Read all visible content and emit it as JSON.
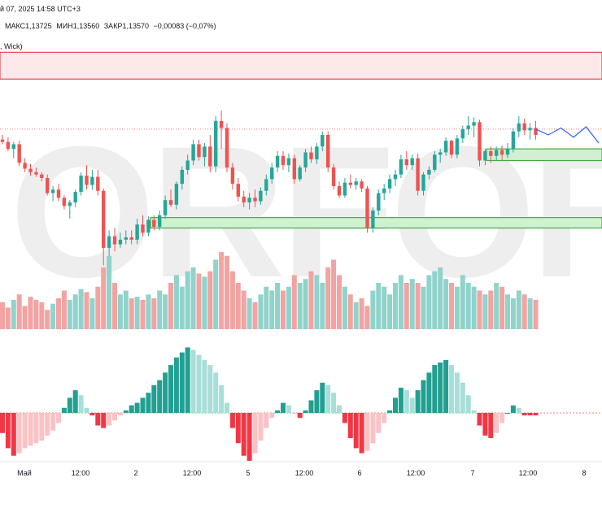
{
  "header": {
    "date_text": "й 07, 2025 14:58 UTC+3",
    "ohlc": [
      {
        "label": "МАКС",
        "value": "1,13725"
      },
      {
        "label": "МИН",
        "value": "1,13560"
      },
      {
        "label": "ЗАКР",
        "value": "1,13570"
      }
    ],
    "change": "−0,00083 (−0,07%)"
  },
  "indicator_label": ", Wick)",
  "watermark": "ORFOREX",
  "time_axis": {
    "ticks": [
      "Май",
      "12:00",
      "2",
      "12:00",
      "5",
      "12:00",
      "6",
      "12:00",
      "7",
      "12:00",
      "8"
    ]
  },
  "colors": {
    "up": "#26a69a",
    "down": "#ef5350",
    "volume_up": "#8fd3cb",
    "volume_down": "#f2a3a2",
    "osc_up_light": "#a8ded8",
    "osc_down_light": "#f9c2c5",
    "osc_up_strong": "#21a092",
    "osc_down_strong": "#f23645",
    "zone_red_fill": "#fde8ea",
    "zone_red_border": "#e8474f",
    "zone_green_fill": "#d3efd3",
    "zone_green_border": "#3fae3f",
    "projection_line": "#2962ff"
  },
  "chart_data": {
    "type": "candlestick",
    "title": "",
    "candles": [
      [
        1.1348,
        1.1352,
        1.1344,
        1.1346
      ],
      [
        1.1346,
        1.135,
        1.1338,
        1.134
      ],
      [
        1.134,
        1.1346,
        1.1332,
        1.1344
      ],
      [
        1.1344,
        1.1347,
        1.1325,
        1.1328
      ],
      [
        1.1328,
        1.1332,
        1.132,
        1.1323
      ],
      [
        1.1323,
        1.1327,
        1.1317,
        1.132
      ],
      [
        1.132,
        1.1324,
        1.1316,
        1.1318
      ],
      [
        1.1318,
        1.132,
        1.1312,
        1.1315
      ],
      [
        1.1315,
        1.1318,
        1.13,
        1.1302
      ],
      [
        1.1302,
        1.1308,
        1.1295,
        1.1305
      ],
      [
        1.1305,
        1.131,
        1.1295,
        1.1298
      ],
      [
        1.1298,
        1.13,
        1.1288,
        1.1291
      ],
      [
        1.1291,
        1.1296,
        1.128,
        1.1294
      ],
      [
        1.1294,
        1.1305,
        1.129,
        1.1303
      ],
      [
        1.1303,
        1.132,
        1.13,
        1.1317
      ],
      [
        1.1317,
        1.1326,
        1.1305,
        1.1309
      ],
      [
        1.1309,
        1.1322,
        1.1305,
        1.1316
      ],
      [
        1.1316,
        1.1322,
        1.13,
        1.1304
      ],
      [
        1.1304,
        1.1306,
        1.124,
        1.1255
      ],
      [
        1.1255,
        1.127,
        1.1248,
        1.1265
      ],
      [
        1.1265,
        1.1272,
        1.1252,
        1.1258
      ],
      [
        1.1258,
        1.1268,
        1.1255,
        1.1262
      ],
      [
        1.1262,
        1.127,
        1.1258,
        1.1264
      ],
      [
        1.1264,
        1.127,
        1.1258,
        1.1262
      ],
      [
        1.1262,
        1.128,
        1.1258,
        1.1275
      ],
      [
        1.1275,
        1.1283,
        1.1265,
        1.1268
      ],
      [
        1.1268,
        1.1282,
        1.1265,
        1.1279
      ],
      [
        1.1279,
        1.1283,
        1.127,
        1.1273
      ],
      [
        1.1273,
        1.1287,
        1.127,
        1.1283
      ],
      [
        1.1283,
        1.13,
        1.128,
        1.1296
      ],
      [
        1.1296,
        1.1305,
        1.129,
        1.1292
      ],
      [
        1.1292,
        1.1312,
        1.1288,
        1.131
      ],
      [
        1.131,
        1.1325,
        1.1305,
        1.1322
      ],
      [
        1.1322,
        1.1335,
        1.1318,
        1.133
      ],
      [
        1.133,
        1.1348,
        1.1326,
        1.1344
      ],
      [
        1.1344,
        1.1348,
        1.133,
        1.1333
      ],
      [
        1.1333,
        1.1345,
        1.1325,
        1.1342
      ],
      [
        1.1342,
        1.1352,
        1.132,
        1.1325
      ],
      [
        1.1325,
        1.1368,
        1.132,
        1.1364
      ],
      [
        1.1364,
        1.1373,
        1.134,
        1.1358
      ],
      [
        1.1358,
        1.1362,
        1.132,
        1.1324
      ],
      [
        1.1324,
        1.1328,
        1.1305,
        1.131
      ],
      [
        1.131,
        1.1315,
        1.1295,
        1.1299
      ],
      [
        1.1299,
        1.1304,
        1.129,
        1.1294
      ],
      [
        1.1294,
        1.1302,
        1.1288,
        1.1298
      ],
      [
        1.1298,
        1.1305,
        1.129,
        1.1295
      ],
      [
        1.1295,
        1.1307,
        1.1292,
        1.1304
      ],
      [
        1.1304,
        1.1318,
        1.13,
        1.1314
      ],
      [
        1.1314,
        1.1328,
        1.131,
        1.1324
      ],
      [
        1.1324,
        1.1338,
        1.132,
        1.1334
      ],
      [
        1.1334,
        1.1338,
        1.1322,
        1.1326
      ],
      [
        1.1326,
        1.1336,
        1.132,
        1.1332
      ],
      [
        1.1332,
        1.1335,
        1.131,
        1.1314
      ],
      [
        1.1314,
        1.1326,
        1.1312,
        1.1324
      ],
      [
        1.1324,
        1.134,
        1.132,
        1.1337
      ],
      [
        1.1337,
        1.1342,
        1.1328,
        1.1331
      ],
      [
        1.1331,
        1.1345,
        1.1327,
        1.1342
      ],
      [
        1.1342,
        1.1355,
        1.1338,
        1.1352
      ],
      [
        1.1352,
        1.1355,
        1.132,
        1.1324
      ],
      [
        1.1324,
        1.1327,
        1.1305,
        1.1308
      ],
      [
        1.1308,
        1.1312,
        1.1298,
        1.13
      ],
      [
        1.13,
        1.1315,
        1.1298,
        1.1311
      ],
      [
        1.1311,
        1.1318,
        1.1306,
        1.1309
      ],
      [
        1.1309,
        1.1315,
        1.1305,
        1.1312
      ],
      [
        1.1312,
        1.1314,
        1.1303,
        1.1306
      ],
      [
        1.1306,
        1.1308,
        1.1268,
        1.1272
      ],
      [
        1.1272,
        1.129,
        1.1268,
        1.1287
      ],
      [
        1.1287,
        1.1305,
        1.1283,
        1.1302
      ],
      [
        1.1302,
        1.131,
        1.1296,
        1.1306
      ],
      [
        1.1306,
        1.1318,
        1.1302,
        1.1314
      ],
      [
        1.1314,
        1.1322,
        1.1308,
        1.1318
      ],
      [
        1.1318,
        1.1335,
        1.1315,
        1.1331
      ],
      [
        1.1331,
        1.1338,
        1.1322,
        1.1326
      ],
      [
        1.1326,
        1.1335,
        1.1322,
        1.1332
      ],
      [
        1.1332,
        1.1336,
        1.13,
        1.1304
      ],
      [
        1.1304,
        1.132,
        1.13,
        1.1318
      ],
      [
        1.1318,
        1.1325,
        1.1314,
        1.1322
      ],
      [
        1.1322,
        1.1338,
        1.132,
        1.1335
      ],
      [
        1.1335,
        1.134,
        1.1328,
        1.1337
      ],
      [
        1.1337,
        1.135,
        1.1334,
        1.1347
      ],
      [
        1.1347,
        1.1348,
        1.1332,
        1.1335
      ],
      [
        1.1335,
        1.1352,
        1.1332,
        1.1349
      ],
      [
        1.1349,
        1.136,
        1.1345,
        1.1357
      ],
      [
        1.1357,
        1.1368,
        1.1352,
        1.136
      ],
      [
        1.136,
        1.1367,
        1.135,
        1.1363
      ],
      [
        1.1363,
        1.1365,
        1.1325,
        1.133
      ],
      [
        1.133,
        1.134,
        1.1326,
        1.1338
      ],
      [
        1.1338,
        1.1342,
        1.1328,
        1.1334
      ],
      [
        1.1334,
        1.1342,
        1.133,
        1.1339
      ],
      [
        1.1339,
        1.1343,
        1.133,
        1.1335
      ],
      [
        1.1335,
        1.1345,
        1.1332,
        1.134
      ],
      [
        1.134,
        1.1358,
        1.1337,
        1.1355
      ],
      [
        1.1355,
        1.1368,
        1.135,
        1.1362
      ],
      [
        1.1362,
        1.1366,
        1.1352,
        1.1356
      ],
      [
        1.1356,
        1.1362,
        1.1348,
        1.1358
      ],
      [
        1.1358,
        1.1364,
        1.1348,
        1.1352
      ]
    ],
    "projection": [
      1.1357,
      1.1352,
      1.1358,
      1.135,
      1.1359,
      1.1345
    ],
    "zones": [
      {
        "name": "resistance",
        "from": 1.14,
        "to": 1.1423
      },
      {
        "name": "support-upper",
        "from": 1.133,
        "to": 1.134
      },
      {
        "name": "support-lower",
        "from": 1.1272,
        "to": 1.1281
      }
    ],
    "current_price_line": 1.1357,
    "volume_ratios": [
      0.35,
      0.28,
      0.38,
      0.45,
      0.3,
      0.42,
      0.38,
      0.35,
      0.25,
      0.33,
      0.4,
      0.5,
      0.38,
      0.45,
      0.52,
      0.48,
      0.4,
      0.55,
      0.8,
      0.95,
      0.6,
      0.45,
      0.5,
      0.4,
      0.42,
      0.38,
      0.45,
      0.4,
      0.5,
      0.45,
      0.6,
      0.7,
      0.55,
      0.75,
      0.8,
      0.72,
      0.68,
      0.75,
      0.9,
      1.0,
      0.95,
      0.75,
      0.6,
      0.5,
      0.4,
      0.35,
      0.45,
      0.55,
      0.5,
      0.6,
      0.5,
      0.55,
      0.7,
      0.6,
      0.65,
      0.75,
      0.7,
      0.6,
      0.8,
      0.9,
      0.7,
      0.55,
      0.45,
      0.35,
      0.4,
      0.3,
      0.5,
      0.6,
      0.55,
      0.45,
      0.6,
      0.7,
      0.6,
      0.65,
      0.6,
      0.55,
      0.7,
      0.75,
      0.8,
      0.65,
      0.6,
      0.55,
      0.7,
      0.6,
      0.55,
      0.5,
      0.45,
      0.5,
      0.6,
      0.55,
      0.45,
      0.4,
      0.5,
      0.45,
      0.4,
      0.38
    ],
    "oscillator": [
      -0.4,
      -0.7,
      -0.85,
      -0.8,
      -0.7,
      -0.65,
      -0.6,
      -0.55,
      -0.45,
      -0.35,
      -0.2,
      0.1,
      0.3,
      0.45,
      0.35,
      0.1,
      -0.05,
      -0.25,
      -0.3,
      -0.25,
      -0.15,
      -0.05,
      0.05,
      0.15,
      0.2,
      0.3,
      0.4,
      0.55,
      0.65,
      0.8,
      0.95,
      1.1,
      1.2,
      1.3,
      1.25,
      1.15,
      1.05,
      0.95,
      0.8,
      0.55,
      0.2,
      -0.3,
      -0.6,
      -0.85,
      -0.95,
      -0.8,
      -0.55,
      -0.3,
      -0.1,
      0.05,
      0.2,
      0.15,
      0.0,
      -0.1,
      0.05,
      0.25,
      0.45,
      0.6,
      0.55,
      0.4,
      0.15,
      -0.2,
      -0.5,
      -0.7,
      -0.8,
      -0.75,
      -0.6,
      -0.4,
      -0.2,
      0.05,
      0.3,
      0.5,
      0.45,
      0.3,
      0.45,
      0.65,
      0.8,
      0.95,
      1.0,
      1.05,
      0.95,
      0.8,
      0.6,
      0.35,
      0.05,
      -0.25,
      -0.45,
      -0.5,
      -0.4,
      -0.2,
      0.0,
      0.15,
      0.1,
      -0.05,
      -0.05,
      -0.05
    ],
    "price_range": [
      1.122,
      1.144
    ]
  }
}
